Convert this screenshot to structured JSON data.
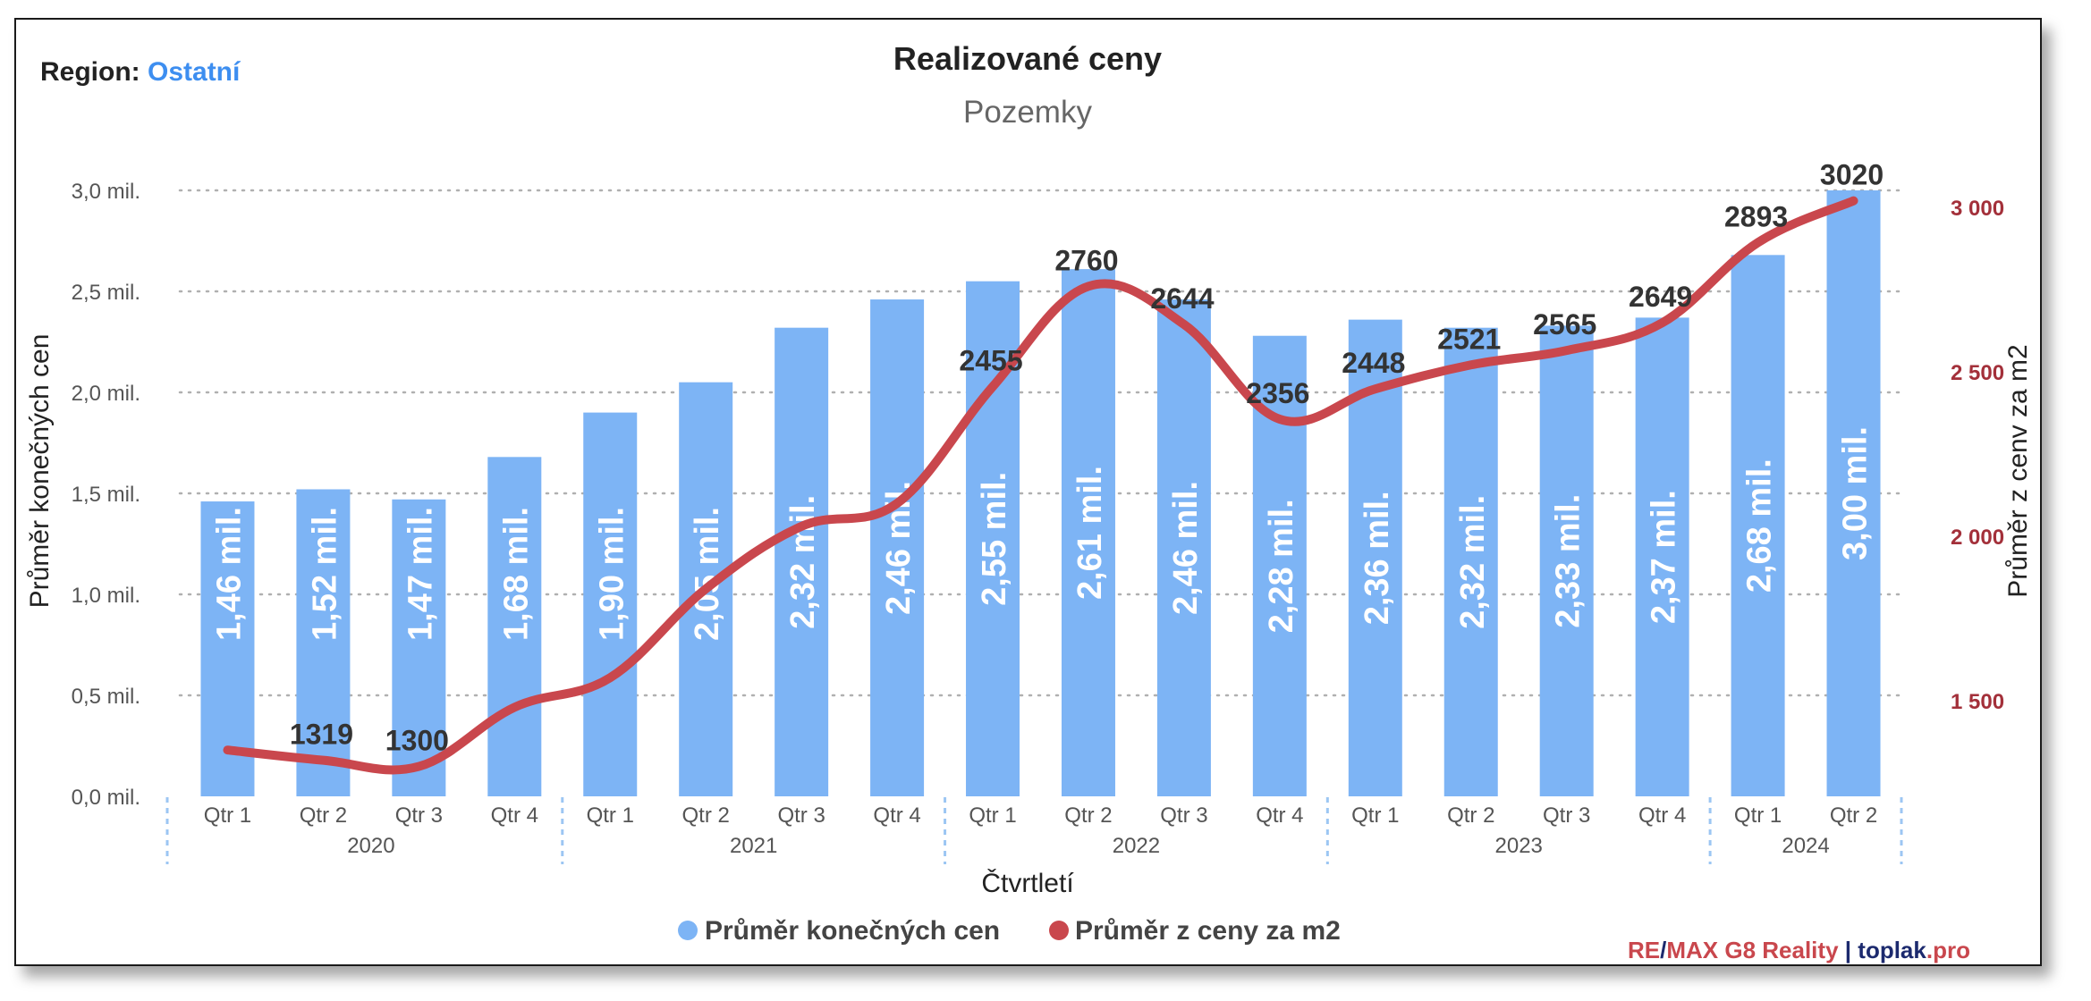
{
  "region": {
    "label": "Region:",
    "value": "Ostatní"
  },
  "brand": {
    "remax": "RE",
    "slash": "/",
    "remax2": "MAX G8 Reality",
    "separator": "|",
    "site": "toplak",
    "site_tld": ".pro"
  },
  "colors": {
    "bar": "#7db4f5",
    "line": "#c9474d",
    "right_axis": "#a3303a",
    "region_value": "#3d8ef0"
  },
  "chart_data": {
    "type": "bar",
    "title": "Realizované ceny",
    "subtitle": "Pozemky",
    "xlabel": "Čtvrtletí",
    "ylabel": "Průměr konečných cen",
    "y2label": "Průměr z cenv za m2",
    "categories": [
      "Qtr 1",
      "Qtr 2",
      "Qtr 3",
      "Qtr 4",
      "Qtr 1",
      "Qtr 2",
      "Qtr 3",
      "Qtr 4",
      "Qtr 1",
      "Qtr 2",
      "Qtr 3",
      "Qtr 4",
      "Qtr 1",
      "Qtr 2",
      "Qtr 3",
      "Qtr 4",
      "Qtr 1",
      "Qtr 2"
    ],
    "years": [
      {
        "label": "2020",
        "count": 4
      },
      {
        "label": "2021",
        "count": 4
      },
      {
        "label": "2022",
        "count": 4
      },
      {
        "label": "2023",
        "count": 4
      },
      {
        "label": "2024",
        "count": 2
      }
    ],
    "ylim": [
      0,
      3.0
    ],
    "y_ticks": [
      {
        "value": 0,
        "label": "0,0 mil."
      },
      {
        "value": 0.5,
        "label": "0,5 mil."
      },
      {
        "value": 1.0,
        "label": "1,0 mil."
      },
      {
        "value": 1.5,
        "label": "1,5 mil."
      },
      {
        "value": 2.0,
        "label": "2,0 mil."
      },
      {
        "value": 2.5,
        "label": "2,5 mil."
      },
      {
        "value": 3.0,
        "label": "3,0 mil."
      }
    ],
    "y2lim": [
      1180,
      3060
    ],
    "y2_ticks": [
      {
        "value": 1500,
        "label": "1 500"
      },
      {
        "value": 2000,
        "label": "2 000"
      },
      {
        "value": 2500,
        "label": "2 500"
      },
      {
        "value": 3000,
        "label": "3 000"
      }
    ],
    "series": [
      {
        "name": "Průměr konečných cen",
        "type": "bar",
        "axis": "left",
        "values": [
          1.46,
          1.52,
          1.47,
          1.68,
          1.9,
          2.05,
          2.32,
          2.46,
          2.55,
          2.61,
          2.46,
          2.28,
          2.36,
          2.32,
          2.33,
          2.37,
          2.68,
          3.0
        ],
        "labels": [
          "1,46 mil.",
          "1,52 mil.",
          "1,47 mil.",
          "1,68 mil.",
          "1,90 mil.",
          "2,05 mil.",
          "2,32 mil.",
          "2,46 mil.",
          "2,55 mil.",
          "2,61 mil.",
          "2,46 mil.",
          "2,28 mil.",
          "2,36 mil.",
          "2,32 mil.",
          "2,33 mil.",
          "2,37 mil.",
          "2,68 mil.",
          "3,00 mil."
        ]
      },
      {
        "name": "Průměr z ceny za m2",
        "type": "line",
        "axis": "right",
        "values": [
          1350,
          1319,
          1300,
          1480,
          1570,
          1840,
          2030,
          2100,
          2455,
          2760,
          2644,
          2356,
          2448,
          2521,
          2565,
          2649,
          2893,
          3020
        ],
        "labels": [
          "",
          "1319",
          "1300",
          "",
          "",
          "",
          "",
          "",
          "2455",
          "2760",
          "2644",
          "2356",
          "2448",
          "2521",
          "2565",
          "2649",
          "2893",
          "3020"
        ]
      }
    ],
    "legend_position": "bottom"
  }
}
